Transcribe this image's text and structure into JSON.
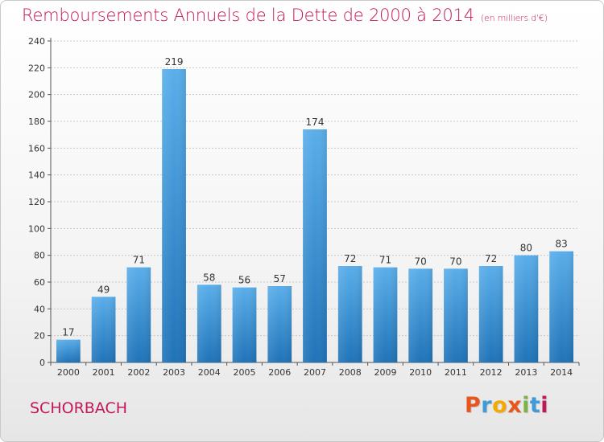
{
  "header": {
    "title": "Remboursements Annuels de la Dette de 2000 à 2014",
    "subtitle": "(en milliers d'€)"
  },
  "footer": {
    "town": "SCHORBACH",
    "logo_text": "Proxiti",
    "logo_colors": [
      "#e8561e",
      "#3f9bd8",
      "#f2a900",
      "#e8561e",
      "#7cb342",
      "#3f9bd8",
      "#c2185b"
    ]
  },
  "colors": {
    "bar_top": "#5aaeea",
    "bar_bottom": "#1f73b8",
    "accent": "#c2185b"
  },
  "chart_data": {
    "type": "bar",
    "title": "Remboursements Annuels de la Dette de 2000 à 2014",
    "subtitle": "(en milliers d'€)",
    "categories": [
      "2000",
      "2001",
      "2002",
      "2003",
      "2004",
      "2005",
      "2006",
      "2007",
      "2008",
      "2009",
      "2010",
      "2011",
      "2012",
      "2013",
      "2014"
    ],
    "values": [
      17,
      49,
      71,
      219,
      58,
      56,
      57,
      174,
      72,
      71,
      70,
      70,
      72,
      80,
      83
    ],
    "ylim": [
      0,
      240
    ],
    "yticks": [
      0,
      20,
      40,
      60,
      80,
      100,
      120,
      140,
      160,
      180,
      200,
      220,
      240
    ],
    "grid": true,
    "xlabel": "",
    "ylabel": ""
  }
}
